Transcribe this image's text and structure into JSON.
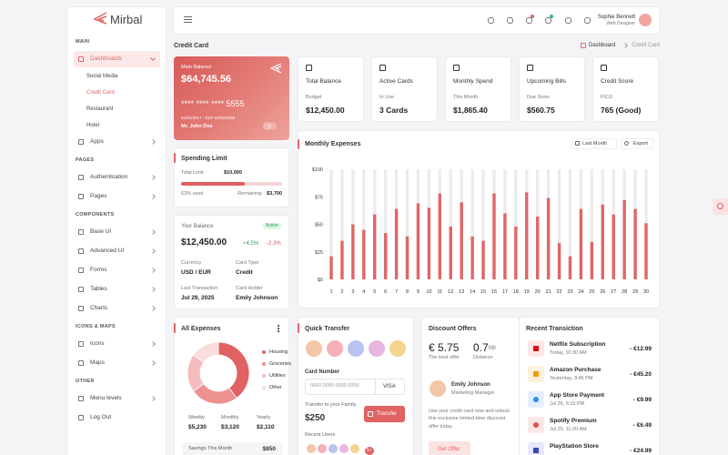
{
  "brand": "Mirbal",
  "sidebar": {
    "sections": [
      {
        "title": "MAIN",
        "items": [
          "Dashboards",
          "Apps"
        ]
      },
      {
        "title": "PAGES",
        "items": [
          "Authentication",
          "Pages"
        ]
      },
      {
        "title": "COMPONENTS",
        "items": [
          "Base UI",
          "Advanced UI",
          "Forms",
          "Tables",
          "Charts"
        ]
      },
      {
        "title": "ICONS & MAPS",
        "items": [
          "Icons",
          "Maps"
        ]
      },
      {
        "title": "OTHER",
        "items": [
          "Menu levels",
          "Log Out"
        ]
      }
    ],
    "submenu": [
      "Social Media",
      "Credit Card",
      "Restaurant",
      "Hotel"
    ]
  },
  "header": {
    "user_name": "Sophie Bennett",
    "user_role": "Web Designer"
  },
  "page_title": "Credit Card",
  "breadcrumb": [
    "Dashboard",
    "Credit Card"
  ],
  "credit_card": {
    "label": "Main Balance",
    "balance": "$64,745.56",
    "number": "**** **** **** 5555",
    "dates": "01/01/2017 - EXP 02/02/2030",
    "holder": "Mr. John Doe"
  },
  "stat_cards": [
    {
      "title": "Total Balance",
      "label": "Budget",
      "value": "$12,450.00"
    },
    {
      "title": "Active Cards",
      "label": "In Use",
      "value": "3 Cards"
    },
    {
      "title": "Monthly Spend",
      "label": "This Month",
      "value": "$1,865.40"
    },
    {
      "title": "Upcoming Bills",
      "label": "Due Soon",
      "value": "$560.75"
    },
    {
      "title": "Credit Score",
      "label": "FICO",
      "value": "765 (Good)"
    }
  ],
  "spending_limit": {
    "title": "Spending Limit",
    "total_label": "Total Limit :",
    "total": "$10,000",
    "used_percent": 63,
    "used_label": "63% used",
    "remaining_label": "Remaining:",
    "remaining": "$3,700"
  },
  "balance_card": {
    "title": "Your Balance",
    "status": "Active",
    "amount": "$12,450.00",
    "change_up": "+4.5%",
    "change_down": "-2.3%",
    "fields": [
      {
        "label": "Currency",
        "value": "USD / EUR"
      },
      {
        "label": "Card Type",
        "value": "Credit"
      },
      {
        "label": "Last Transaction",
        "value": "Jul 29, 2025"
      },
      {
        "label": "Card Holder",
        "value": "Emily Johnson"
      }
    ]
  },
  "chart_controls": {
    "period": "Last Month",
    "export": "Export"
  },
  "chart_data": [
    {
      "type": "bar",
      "title": "Monthly Expenses",
      "categories": [
        "1",
        "2",
        "3",
        "4",
        "5",
        "6",
        "7",
        "8",
        "9",
        "10",
        "11",
        "12",
        "13",
        "14",
        "15",
        "16",
        "17",
        "18",
        "19",
        "20",
        "21",
        "22",
        "23",
        "24",
        "25",
        "26",
        "27",
        "28",
        "29",
        "30"
      ],
      "values": [
        21,
        35,
        50,
        45,
        59,
        42,
        64,
        39,
        69,
        65,
        78,
        48,
        70,
        39,
        35,
        78,
        60,
        48,
        79,
        57,
        74,
        33,
        21,
        64,
        34,
        68,
        59,
        72,
        64,
        51
      ],
      "color": "#e06666",
      "ylim": [
        0,
        100
      ],
      "yticks": [
        {
          "value": 0,
          "label": "$0"
        },
        {
          "value": 25,
          "label": "$25"
        },
        {
          "value": 50,
          "label": "$50"
        },
        {
          "value": 75,
          "label": "$75"
        },
        {
          "value": 100,
          "label": "$100"
        }
      ]
    },
    {
      "type": "pie",
      "title": "All Expenses",
      "categories": [
        "Housing",
        "Groceries",
        "Utilities",
        "Other"
      ],
      "values": [
        40,
        25,
        20,
        15
      ],
      "colors": [
        "#e06262",
        "#ec9090",
        "#f4bcbc",
        "#f9dcdc"
      ]
    }
  ],
  "expense_periods": [
    {
      "label": "Weekly",
      "value": "$5,230"
    },
    {
      "label": "Monthly",
      "value": "$3,120"
    },
    {
      "label": "Yearly",
      "value": "$2,110"
    }
  ],
  "savings": {
    "label": "Savings This Month",
    "value": "$850"
  },
  "quick_transfer": {
    "title": "Quick Transfer",
    "card_label": "Card Number",
    "card_placeholder": "0000 0000 0000 0000",
    "card_brand": "VISA",
    "family_label": "Transfer to your Family",
    "amount": "$250",
    "button": "Transfer",
    "recent_label": "Recent Users",
    "more": "5+"
  },
  "discount": {
    "title": "Discount Offers",
    "price": "€ 5.75",
    "price_label": "The best offer",
    "distance": "0.7",
    "distance_unit": "Mil",
    "distance_label": "Distance",
    "person_name": "Emily Johnson",
    "person_role": "Marketing Manager",
    "text": "Use your credit card now and unlock this exclusive limited-time discount offer today.",
    "button": "Get Offer"
  },
  "transactions": {
    "title": "Recent Transiction",
    "items": [
      {
        "name": "Netflix Subscription",
        "time": "Today, 10:30 AM",
        "amount": "- €12.99"
      },
      {
        "name": "Amazon Purchase",
        "time": "Yesterday, 3:45 PM",
        "amount": "- €45.20"
      },
      {
        "name": "App Store Payment",
        "time": "Jul 26, 6:15 PM",
        "amount": "- €9.99"
      },
      {
        "name": "Spotify Premium",
        "time": "Jul 25, 11:20 AM",
        "amount": "- €6.49"
      },
      {
        "name": "PlayStation Store",
        "amount": "- €24.99"
      }
    ]
  }
}
